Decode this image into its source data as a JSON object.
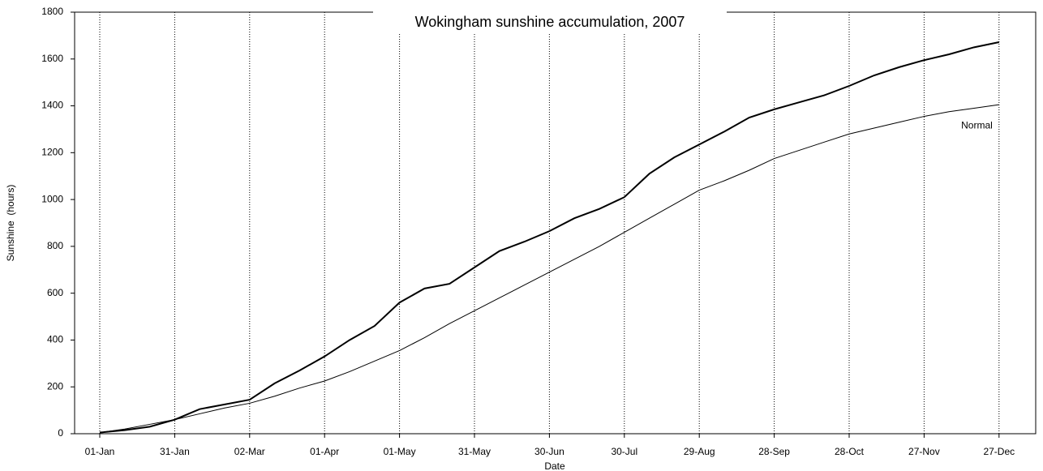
{
  "chart_data": {
    "type": "line",
    "title": "Wokingham sunshine accumulation, 2007",
    "x_label": "Date",
    "y_label": "Sunshine  (hours)",
    "categories": [
      "01-Jan",
      null,
      null,
      "31-Jan",
      null,
      null,
      "02-Mar",
      null,
      null,
      "01-Apr",
      null,
      null,
      "01-May",
      null,
      null,
      "31-May",
      null,
      null,
      "30-Jun",
      null,
      null,
      "30-Jul",
      null,
      null,
      "29-Aug",
      null,
      null,
      "28-Sep",
      null,
      null,
      "28-Oct",
      null,
      null,
      "27-Nov",
      null,
      null,
      "27-Dec"
    ],
    "series": [
      {
        "color": "#000000",
        "line_width": 2,
        "values": [
          5,
          15,
          30,
          60,
          105,
          125,
          145,
          215,
          270,
          330,
          400,
          460,
          560,
          620,
          640,
          710,
          780,
          820,
          865,
          920,
          960,
          1010,
          1110,
          1180,
          1235,
          1290,
          1350,
          1385,
          1415,
          1445,
          1485,
          1530,
          1565,
          1595,
          1620,
          1650,
          1672
        ]
      },
      {
        "name": "Normal",
        "color": "#000000",
        "line_width": 1,
        "values": [
          5,
          20,
          40,
          60,
          85,
          110,
          130,
          160,
          195,
          225,
          265,
          310,
          355,
          410,
          470,
          525,
          580,
          635,
          690,
          745,
          800,
          860,
          920,
          980,
          1040,
          1080,
          1125,
          1175,
          1210,
          1245,
          1280,
          1305,
          1330,
          1355,
          1375,
          1390,
          1405
        ]
      }
    ],
    "ylim": [
      0,
      1800
    ],
    "yticks": [
      0,
      200,
      400,
      600,
      800,
      1000,
      1200,
      1400,
      1600,
      1800
    ],
    "grid": true
  }
}
